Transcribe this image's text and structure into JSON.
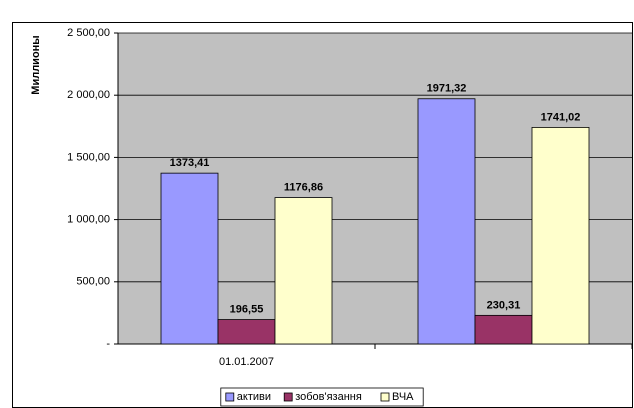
{
  "chart_data": {
    "type": "bar",
    "y_label": "Миллионы",
    "categories": [
      "01.01.2007",
      null
    ],
    "series": [
      {
        "name": "активи",
        "color": "#9999ff",
        "values": [
          1373.41,
          1971.32
        ],
        "value_labels": [
          "1373,41",
          "1971,32"
        ]
      },
      {
        "name": "зобов'язання",
        "color": "#993366",
        "values": [
          196.55,
          230.31
        ],
        "value_labels": [
          "196,55",
          "230,31"
        ]
      },
      {
        "name": "ВЧА",
        "color": "#ffffcc",
        "values": [
          1176.86,
          1741.02
        ],
        "value_labels": [
          "1176,86",
          "1741,02"
        ]
      }
    ],
    "ylim": [
      0,
      2500
    ],
    "yticks": [
      {
        "value": 0,
        "label": "-"
      },
      {
        "value": 500,
        "label": "500,00"
      },
      {
        "value": 1000,
        "label": "1 000,00"
      },
      {
        "value": 1500,
        "label": "1 500,00"
      },
      {
        "value": 2000,
        "label": "2 000,00"
      },
      {
        "value": 2500,
        "label": "2 500,00"
      }
    ],
    "grid": true,
    "legend": "bottom",
    "plot_background": "#c0c0c0"
  }
}
